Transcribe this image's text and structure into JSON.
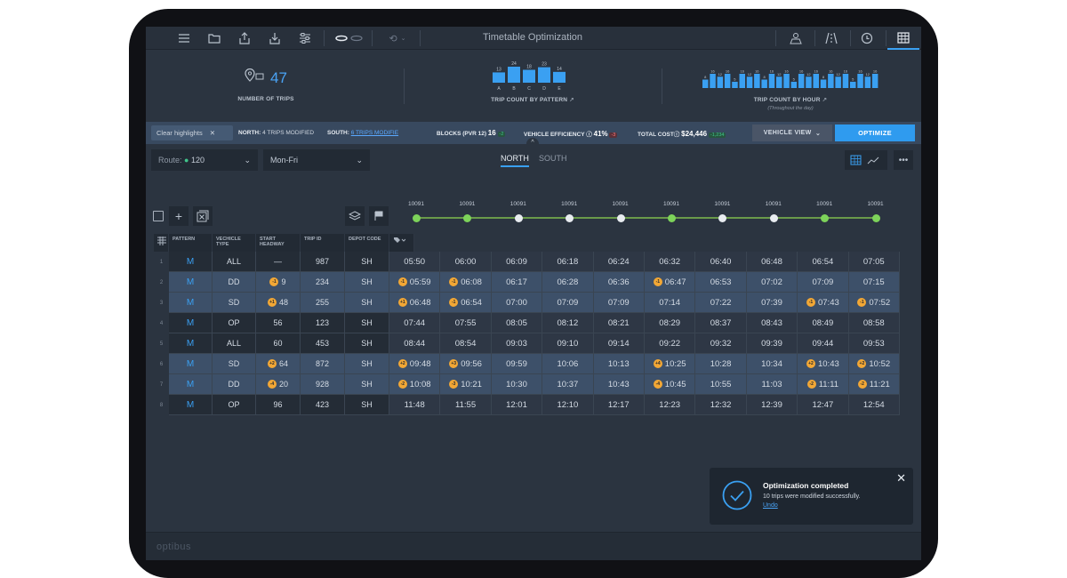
{
  "app": {
    "title": "Timetable Optimization",
    "brand": "optibus"
  },
  "stats": {
    "trips_value": "47",
    "trips_label": "NUMBER OF TRIPS",
    "pattern_label": "TRIP COUNT BY PATTERN",
    "pattern_bars": [
      {
        "label": "A",
        "value": 13
      },
      {
        "label": "B",
        "value": 24
      },
      {
        "label": "C",
        "value": 18
      },
      {
        "label": "D",
        "value": 23
      },
      {
        "label": "E",
        "value": 14
      }
    ],
    "hour_label": "TRIP COUNT BY HOUR",
    "hour_sub": "(Throughout the day)",
    "hour_bars": [
      8,
      16,
      12,
      16,
      5,
      16,
      12,
      16,
      8,
      16,
      12,
      16,
      5,
      16,
      12,
      16,
      8,
      16,
      12,
      16,
      5,
      16,
      12,
      16
    ]
  },
  "infobar": {
    "clear_label": "Clear highlights",
    "clear_x": "✕",
    "north_label": "NORTH:",
    "north_value": "4 TRIPS MODIFIED",
    "south_label": "SOUTH:",
    "south_value": "6 TRIPS MODIFIE",
    "blocks_label": "BLOCKS (PVR 12)",
    "blocks_value": "16",
    "blocks_delta": "-2",
    "eff_label": "VEHICLE EFFICIENCY ⓘ",
    "eff_value": "41%",
    "eff_delta": "-3",
    "cost_label": "TOTAL COSTⓘ",
    "cost_value": "$24,446",
    "cost_delta": "-1,234",
    "view_label": "VEHICLE VIEW",
    "optimize_label": "OPTIMIZE"
  },
  "filters": {
    "route_prefix": "Route:",
    "route_value": "120",
    "days_value": "Mon-Fri",
    "tab_north": "NORTH",
    "tab_south": "SOUTH"
  },
  "stops": [
    "10091",
    "10091",
    "10091",
    "10091",
    "10091",
    "10091",
    "10091",
    "10091",
    "10091",
    "10091"
  ],
  "stop_colors": [
    "#7dd35a",
    "#7dd35a",
    "#e8ecf0",
    "#e8ecf0",
    "#e8ecf0",
    "#7dd35a",
    "#e8ecf0",
    "#e8ecf0",
    "#7dd35a",
    "#7dd35a"
  ],
  "columns": {
    "pattern": "PATTERN",
    "vehicle_type": "VECHICLE TYPE",
    "start_headway": "START HEADWAY",
    "trip_id": "TRIP ID",
    "depot_code": "DEPOT CODE"
  },
  "rows": [
    {
      "n": "1",
      "pattern": "M",
      "vt": "ALL",
      "hw": "—",
      "hwb": "",
      "trip": "987",
      "depot": "SH",
      "hl": false,
      "times": [
        [
          "",
          "05:50"
        ],
        [
          "",
          "06:00"
        ],
        [
          "",
          "06:09"
        ],
        [
          "",
          "06:18"
        ],
        [
          "",
          "06:24"
        ],
        [
          "",
          "06:32"
        ],
        [
          "",
          "06:40"
        ],
        [
          "",
          "06:48"
        ],
        [
          "",
          "06:54"
        ],
        [
          "",
          "07:05"
        ]
      ]
    },
    {
      "n": "2",
      "pattern": "M",
      "vt": "DD",
      "hw": "9",
      "hwb": "-1",
      "trip": "234",
      "depot": "SH",
      "hl": true,
      "times": [
        [
          "-1",
          "05:59"
        ],
        [
          "-1",
          "06:08"
        ],
        [
          "",
          "06:17"
        ],
        [
          "",
          "06:28"
        ],
        [
          "",
          "06:36"
        ],
        [
          "-1",
          "06:47"
        ],
        [
          "",
          "06:53"
        ],
        [
          "",
          "07:02"
        ],
        [
          "",
          "07:09"
        ],
        [
          "",
          "07:15"
        ]
      ]
    },
    {
      "n": "3",
      "pattern": "M",
      "vt": "SD",
      "hw": "48",
      "hwb": "+1",
      "trip": "255",
      "depot": "SH",
      "hl": true,
      "times": [
        [
          "+1",
          "06:48"
        ],
        [
          "-1",
          "06:54"
        ],
        [
          "",
          "07:00"
        ],
        [
          "",
          "07:09"
        ],
        [
          "",
          "07:09"
        ],
        [
          "",
          "07:14"
        ],
        [
          "",
          "07:22"
        ],
        [
          "",
          "07:39"
        ],
        [
          "-1",
          "07:43"
        ],
        [
          "-1",
          "07:52"
        ]
      ]
    },
    {
      "n": "4",
      "pattern": "M",
      "vt": "OP",
      "hw": "56",
      "hwb": "",
      "trip": "123",
      "depot": "SH",
      "hl": false,
      "times": [
        [
          "",
          "07:44"
        ],
        [
          "",
          "07:55"
        ],
        [
          "",
          "08:05"
        ],
        [
          "",
          "08:12"
        ],
        [
          "",
          "08:21"
        ],
        [
          "",
          "08:29"
        ],
        [
          "",
          "08:37"
        ],
        [
          "",
          "08:43"
        ],
        [
          "",
          "08:49"
        ],
        [
          "",
          "08:58"
        ]
      ]
    },
    {
      "n": "5",
      "pattern": "M",
      "vt": "ALL",
      "hw": "60",
      "hwb": "",
      "trip": "453",
      "depot": "SH",
      "hl": false,
      "times": [
        [
          "",
          "08:44"
        ],
        [
          "",
          "08:54"
        ],
        [
          "",
          "09:03"
        ],
        [
          "",
          "09:10"
        ],
        [
          "",
          "09:14"
        ],
        [
          "",
          "09:22"
        ],
        [
          "",
          "09:32"
        ],
        [
          "",
          "09:39"
        ],
        [
          "",
          "09:44"
        ],
        [
          "",
          "09:53"
        ]
      ]
    },
    {
      "n": "6",
      "pattern": "M",
      "vt": "SD",
      "hw": "64",
      "hwb": "+2",
      "trip": "872",
      "depot": "SH",
      "hl": true,
      "times": [
        [
          "+2",
          "09:48"
        ],
        [
          "+3",
          "09:56"
        ],
        [
          "",
          "09:59"
        ],
        [
          "",
          "10:06"
        ],
        [
          "",
          "10:13"
        ],
        [
          "+4",
          "10:25"
        ],
        [
          "",
          "10:28"
        ],
        [
          "",
          "10:34"
        ],
        [
          "+2",
          "10:43"
        ],
        [
          "+2",
          "10:52"
        ]
      ]
    },
    {
      "n": "7",
      "pattern": "M",
      "vt": "DD",
      "hw": "20",
      "hwb": "-4",
      "trip": "928",
      "depot": "SH",
      "hl": true,
      "times": [
        [
          "-2",
          "10:08"
        ],
        [
          "-3",
          "10:21"
        ],
        [
          "",
          "10:30"
        ],
        [
          "",
          "10:37"
        ],
        [
          "",
          "10:43"
        ],
        [
          "-4",
          "10:45"
        ],
        [
          "",
          "10:55"
        ],
        [
          "",
          "11:03"
        ],
        [
          "-2",
          "11:11"
        ],
        [
          "-2",
          "11:21"
        ]
      ]
    },
    {
      "n": "8",
      "pattern": "M",
      "vt": "OP",
      "hw": "96",
      "hwb": "",
      "trip": "423",
      "depot": "SH",
      "hl": false,
      "times": [
        [
          "",
          "11:48"
        ],
        [
          "",
          "11:55"
        ],
        [
          "",
          "12:01"
        ],
        [
          "",
          "12:10"
        ],
        [
          "",
          "12:17"
        ],
        [
          "",
          "12:23"
        ],
        [
          "",
          "12:32"
        ],
        [
          "",
          "12:39"
        ],
        [
          "",
          "12:47"
        ],
        [
          "",
          "12:54"
        ]
      ]
    }
  ],
  "toast": {
    "title": "Optimization completed",
    "message": "10 trips were modified successfully.",
    "undo": "Undo",
    "close": "✕"
  }
}
